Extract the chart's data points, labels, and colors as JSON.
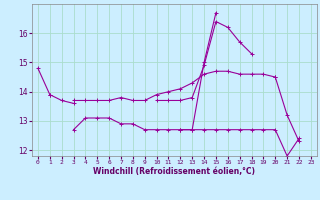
{
  "xlabel": "Windchill (Refroidissement éolien,°C)",
  "background_color": "#cceeff",
  "grid_color": "#aaddcc",
  "line_color": "#990099",
  "hours": [
    0,
    1,
    2,
    3,
    4,
    5,
    6,
    7,
    8,
    9,
    10,
    11,
    12,
    13,
    14,
    15,
    16,
    17,
    18,
    19,
    20,
    21,
    22,
    23
  ],
  "line1": [
    14.8,
    13.9,
    null,
    13.7,
    13.7,
    13.7,
    13.7,
    13.8,
    13.7,
    13.7,
    13.9,
    14.0,
    14.1,
    14.3,
    14.6,
    14.7,
    14.7,
    14.6,
    14.6,
    14.6,
    14.5,
    null,
    null,
    null
  ],
  "line2": [
    null,
    13.9,
    13.7,
    13.6,
    null,
    null,
    null,
    null,
    null,
    null,
    13.7,
    13.7,
    13.7,
    13.8,
    14.9,
    16.4,
    16.2,
    15.7,
    15.3,
    null,
    14.5,
    13.2,
    12.3,
    null
  ],
  "line3": [
    null,
    null,
    null,
    12.7,
    13.1,
    13.1,
    13.1,
    12.9,
    12.9,
    12.7,
    12.7,
    12.7,
    12.7,
    12.7,
    15.0,
    16.7,
    null,
    null,
    null,
    null,
    null,
    null,
    null,
    null
  ],
  "line4": [
    null,
    null,
    null,
    null,
    null,
    null,
    null,
    null,
    null,
    null,
    null,
    null,
    12.7,
    12.7,
    12.7,
    12.7,
    12.7,
    12.7,
    12.7,
    12.7,
    12.7,
    11.8,
    12.4,
    null
  ],
  "ylim": [
    11.8,
    17.0
  ],
  "yticks": [
    12,
    13,
    14,
    15,
    16
  ],
  "xtick_labels": [
    "0",
    "1",
    "2",
    "3",
    "4",
    "5",
    "6",
    "7",
    "8",
    "9",
    "10",
    "11",
    "12",
    "13",
    "14",
    "15",
    "16",
    "17",
    "18",
    "19",
    "20",
    "21",
    "22",
    "23"
  ]
}
